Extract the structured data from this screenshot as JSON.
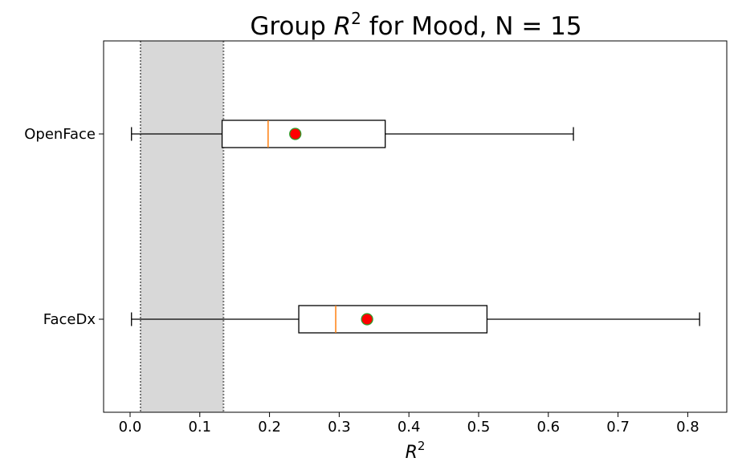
{
  "chart_data": {
    "type": "boxplot",
    "orientation": "horizontal",
    "title": {
      "prefix": "Group ",
      "math_base": "R",
      "math_sup": "2",
      "suffix": " for Mood, N = 15"
    },
    "xlabel": {
      "base": "R",
      "sup": "2"
    },
    "xlim": [
      -0.038,
      0.856
    ],
    "xticks": [
      0.0,
      0.1,
      0.2,
      0.3,
      0.4,
      0.5,
      0.6,
      0.7,
      0.8
    ],
    "xtick_labels": [
      "0.0",
      "0.1",
      "0.2",
      "0.3",
      "0.4",
      "0.5",
      "0.6",
      "0.7",
      "0.8"
    ],
    "shaded_region": {
      "from": 0.015,
      "to": 0.134,
      "color": "#d8d8d8",
      "edge_color": "#777777",
      "edge_style": "dotted"
    },
    "series": [
      {
        "name": "OpenFace",
        "whisker_low": 0.002,
        "q1": 0.132,
        "median": 0.198,
        "q3": 0.366,
        "whisker_high": 0.636,
        "mean": 0.237
      },
      {
        "name": "FaceDx",
        "whisker_low": 0.002,
        "q1": 0.242,
        "median": 0.295,
        "q3": 0.512,
        "whisker_high": 0.817,
        "mean": 0.34
      }
    ],
    "colors": {
      "box": "#000000",
      "median": "#ff7f0e",
      "mean_fill": "#ff0000",
      "mean_edge": "#2ca02c"
    },
    "grid": false,
    "legend": "none"
  }
}
